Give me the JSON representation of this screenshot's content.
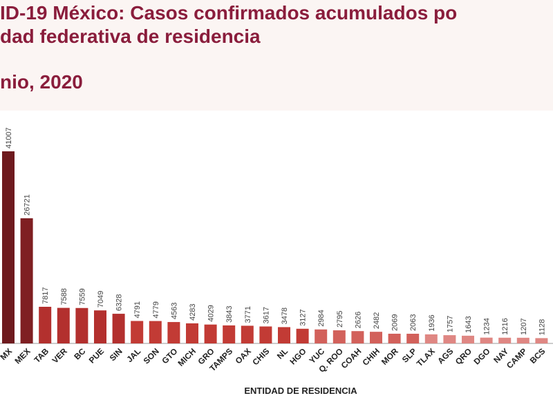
{
  "chart_data": {
    "type": "bar",
    "title_lines": [
      "ID-19 México: Casos confirmados acumulados po",
      "dad federativa de residencia",
      "nio, 2020"
    ],
    "x_label": "ENTIDAD DE RESIDENCIA",
    "categories": [
      "MX",
      "MEX",
      "TAB",
      "VER",
      "BC",
      "PUE",
      "SIN",
      "JAL",
      "SON",
      "GTO",
      "MICH",
      "GRO",
      "TAMPS",
      "OAX",
      "CHIS",
      "NL",
      "HGO",
      "YUC",
      "Q. ROO",
      "COAH",
      "CHIH",
      "MOR",
      "SLP",
      "TLAX",
      "AGS",
      "QRO",
      "DGO",
      "NAY",
      "CAMP",
      "BCS"
    ],
    "values": [
      41007,
      26721,
      7817,
      7588,
      7559,
      7049,
      6328,
      4791,
      4779,
      4563,
      4283,
      4029,
      3843,
      3771,
      3617,
      3478,
      3127,
      2984,
      2795,
      2626,
      2482,
      2069,
      2063,
      1936,
      1757,
      1643,
      1234,
      1216,
      1207,
      1128
    ],
    "colors": [
      "#6e1a1e",
      "#7f1f22",
      "#b3302e",
      "#b3302e",
      "#b3302e",
      "#b3302e",
      "#b3302e",
      "#c23b35",
      "#c23b35",
      "#c23b35",
      "#c23b35",
      "#c23b35",
      "#c23b35",
      "#c23b35",
      "#c23b35",
      "#c23b35",
      "#c23b35",
      "#d2615b",
      "#d2615b",
      "#d2615b",
      "#d2615b",
      "#d2615b",
      "#d2615b",
      "#df8783",
      "#df8783",
      "#df8783",
      "#df8783",
      "#df8783",
      "#df8783",
      "#df8783"
    ]
  }
}
